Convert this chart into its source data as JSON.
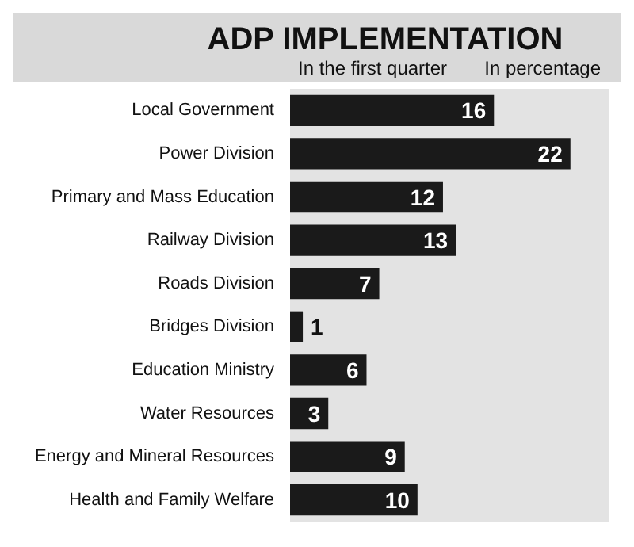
{
  "chart_data": {
    "type": "bar",
    "orientation": "horizontal",
    "title": "ADP IMPLEMENTATION",
    "subtitle": "In the first quarter",
    "annotations": [
      "In percentage"
    ],
    "categories": [
      "Local Government",
      "Power Division",
      "Primary and Mass Education",
      "Railway Division",
      "Roads Division",
      "Bridges Division",
      "Education Ministry",
      "Water Resources",
      "Energy and Mineral Resources",
      "Health and Family Welfare"
    ],
    "values": [
      16,
      22,
      12,
      13,
      7,
      1,
      6,
      3,
      9,
      10
    ],
    "color": "#1a1a1a",
    "data_labels": true
  }
}
